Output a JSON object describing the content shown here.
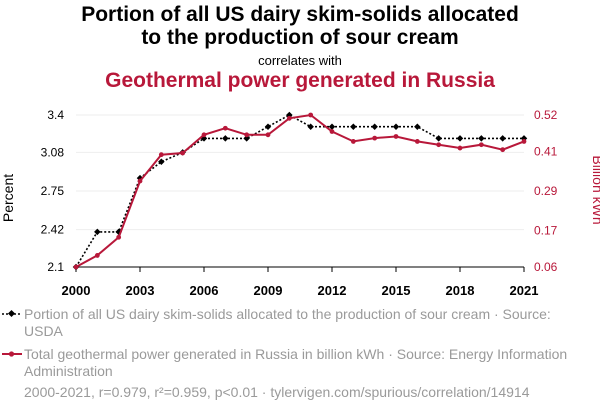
{
  "chart_data": {
    "type": "line",
    "title_line1": "Portion of all US dairy skim-solids allocated",
    "title_line2": "to the production of sour cream",
    "subtitle": "correlates with",
    "title_secondary": "Geothermal power generated in Russia",
    "x": [
      2000,
      2001,
      2002,
      2003,
      2004,
      2005,
      2006,
      2007,
      2008,
      2009,
      2010,
      2011,
      2012,
      2013,
      2014,
      2015,
      2016,
      2017,
      2018,
      2019,
      2020,
      2021
    ],
    "x_ticks": [
      "2000",
      "2003",
      "2006",
      "2009",
      "2012",
      "2015",
      "2018",
      "2021"
    ],
    "ylabel_left": "Percent",
    "ylabel_right": "Billion kWh",
    "ylim_left": [
      2.1,
      3.4
    ],
    "ylim_right": [
      0.06,
      0.52
    ],
    "yticks_left": [
      "2.1",
      "2.42",
      "2.75",
      "3.08",
      "3.4"
    ],
    "yticks_right": [
      "0.06",
      "0.17",
      "0.29",
      "0.41",
      "0.52"
    ],
    "series": [
      {
        "name": "Portion of all US dairy skim-solids allocated to the production of sour cream",
        "axis": "left",
        "color": "#000000",
        "style": "dotted-markers",
        "values": [
          2.1,
          2.4,
          2.4,
          2.86,
          3.0,
          3.08,
          3.2,
          3.2,
          3.2,
          3.3,
          3.4,
          3.3,
          3.3,
          3.3,
          3.3,
          3.3,
          3.3,
          3.2,
          3.2,
          3.2,
          3.2,
          3.2
        ]
      },
      {
        "name": "Total geothermal power generated in Russia in billion kWh",
        "axis": "right",
        "color": "#b8183a",
        "style": "solid",
        "values": [
          0.06,
          0.095,
          0.15,
          0.32,
          0.4,
          0.405,
          0.46,
          0.48,
          0.46,
          0.46,
          0.51,
          0.52,
          0.47,
          0.44,
          0.45,
          0.455,
          0.44,
          0.43,
          0.42,
          0.43,
          0.415,
          0.44
        ]
      }
    ],
    "legend": [
      {
        "label": "Portion of all US dairy skim-solids allocated to the production of sour cream · Source: USDA"
      },
      {
        "label": "Total geothermal power generated in Russia in billion kWh · Source: Energy Information Administration"
      }
    ],
    "footer": "2000-2021, r=0.979, r²=0.959, p<0.01 · tylervigen.com/spurious/correlation/14914"
  }
}
